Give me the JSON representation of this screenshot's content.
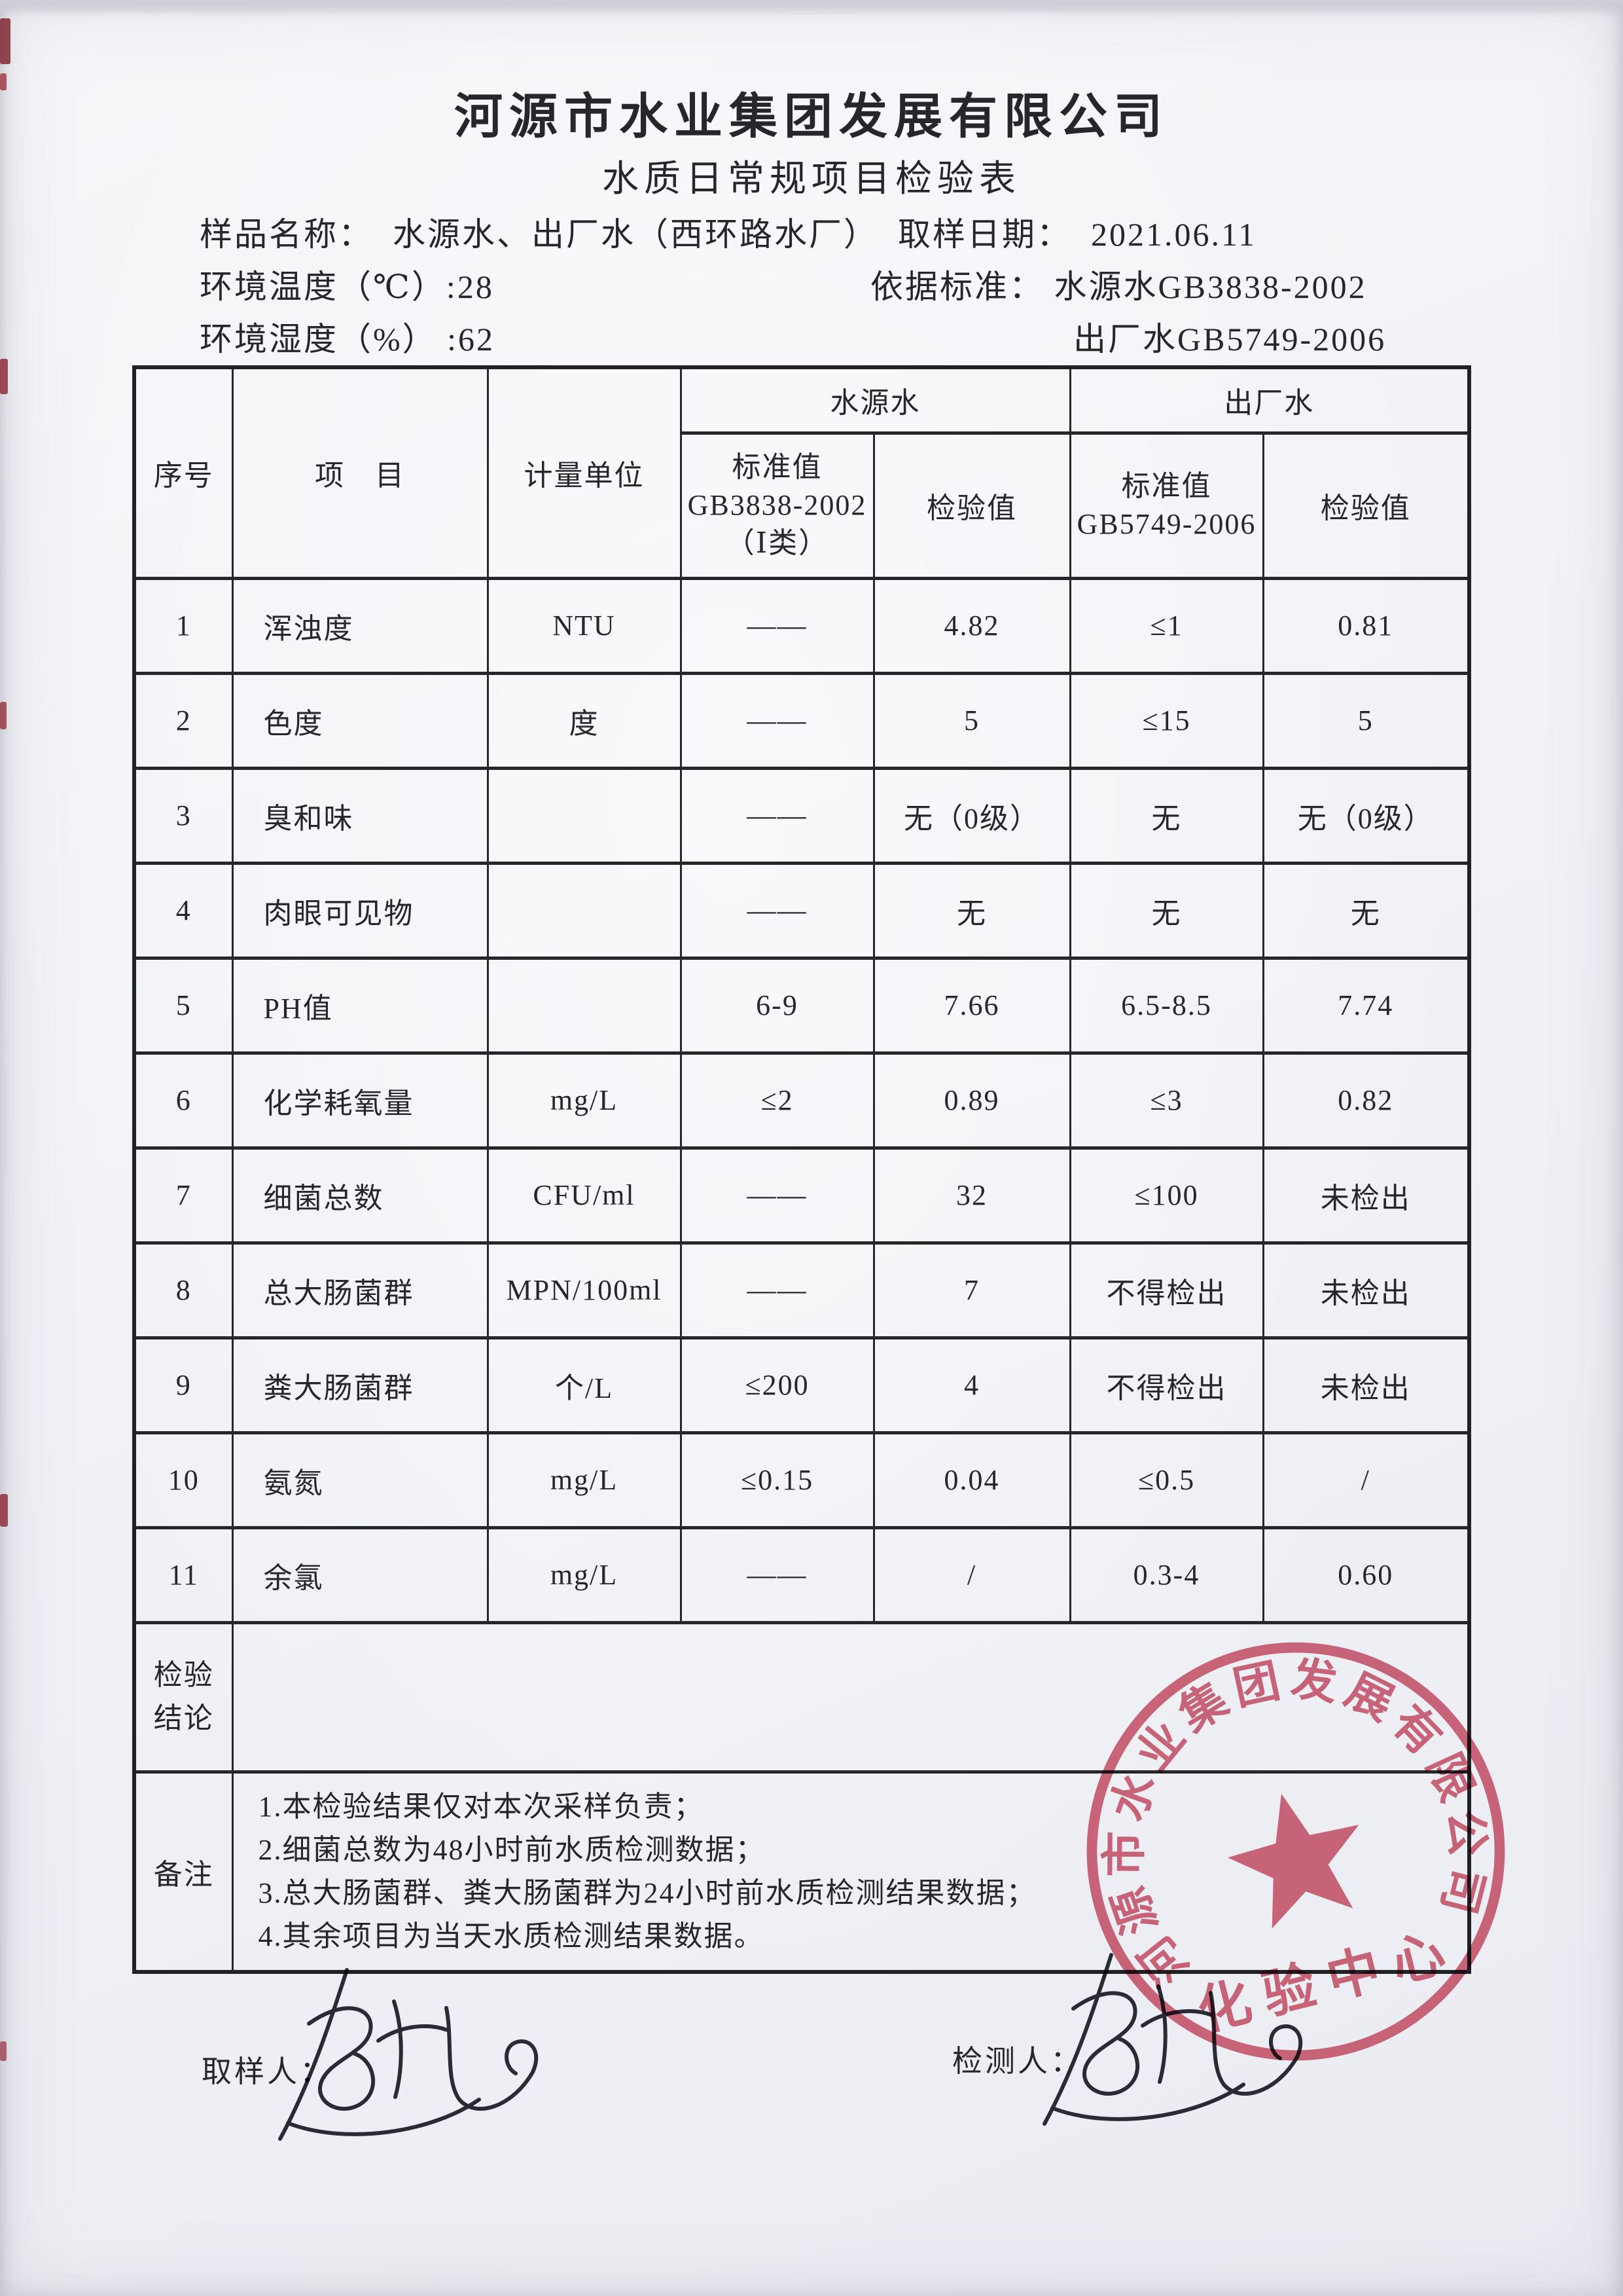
{
  "header": {
    "company": "河源市水业集团发展有限公司",
    "doc_title": "水质日常规项目检验表",
    "sample_label": "样品名称：",
    "sample_value": "水源水、出厂水（西环路水厂）",
    "date_label": "取样日期：",
    "date_value": "2021.06.11",
    "env_temp": "环境温度（℃）:28",
    "basis": "依据标准： 水源水GB3838-2002",
    "env_humidity": "环境湿度（%）  :62",
    "basis_factory": "出厂水GB5749-2006"
  },
  "table": {
    "headers": {
      "seq": "序号",
      "item": "项　目",
      "unit": "计量单位",
      "source_group": "水源水",
      "factory_group": "出厂水",
      "source_std": [
        "标准值",
        "GB3838-2002",
        "（Ⅰ类）"
      ],
      "source_check": "检验值",
      "factory_std": [
        "标准值",
        "GB5749-2006"
      ],
      "factory_check": "检验值"
    },
    "rows": [
      {
        "seq": "1",
        "item": "浑浊度",
        "unit": "NTU",
        "src_std": "——",
        "src_val": "4.82",
        "fac_std": "≤1",
        "fac_val": "0.81"
      },
      {
        "seq": "2",
        "item": "色度",
        "unit": "度",
        "src_std": "——",
        "src_val": "5",
        "fac_std": "≤15",
        "fac_val": "5"
      },
      {
        "seq": "3",
        "item": "臭和味",
        "unit": "",
        "src_std": "——",
        "src_val": "无（0级）",
        "fac_std": "无",
        "fac_val": "无（0级）"
      },
      {
        "seq": "4",
        "item": "肉眼可见物",
        "unit": "",
        "src_std": "——",
        "src_val": "无",
        "fac_std": "无",
        "fac_val": "无"
      },
      {
        "seq": "5",
        "item": "PH值",
        "unit": "",
        "src_std": "6-9",
        "src_val": "7.66",
        "fac_std": "6.5-8.5",
        "fac_val": "7.74"
      },
      {
        "seq": "6",
        "item": "化学耗氧量",
        "unit": "mg/L",
        "src_std": "≤2",
        "src_val": "0.89",
        "fac_std": "≤3",
        "fac_val": "0.82"
      },
      {
        "seq": "7",
        "item": "细菌总数",
        "unit": "CFU/ml",
        "src_std": "——",
        "src_val": "32",
        "fac_std": "≤100",
        "fac_val": "未检出"
      },
      {
        "seq": "8",
        "item": "总大肠菌群",
        "unit": "MPN/100ml",
        "src_std": "——",
        "src_val": "7",
        "fac_std": "不得检出",
        "fac_val": "未检出"
      },
      {
        "seq": "9",
        "item": "粪大肠菌群",
        "unit": "个/L",
        "src_std": "≤200",
        "src_val": "4",
        "fac_std": "不得检出",
        "fac_val": "未检出"
      },
      {
        "seq": "10",
        "item": "氨氮",
        "unit": "mg/L",
        "src_std": "≤0.15",
        "src_val": "0.04",
        "fac_std": "≤0.5",
        "fac_val": "/"
      },
      {
        "seq": "11",
        "item": "余氯",
        "unit": "mg/L",
        "src_std": "——",
        "src_val": "/",
        "fac_std": "0.3-4",
        "fac_val": "0.60"
      }
    ],
    "conclusion": {
      "label": [
        "检验",
        "结论"
      ],
      "value": ""
    },
    "remarks": {
      "label": "备注",
      "lines": [
        "1.本检验结果仅对本次采样负责；",
        "2.细菌总数为48小时前水质检测数据；",
        "3.总大肠菌群、粪大肠菌群为24小时前水质检测结果数据；",
        "4.其余项目为当天水质检测结果数据。"
      ]
    }
  },
  "footer": {
    "sampler_label": "取样人：",
    "tester_label": "检测人："
  },
  "stamp": {
    "ring_text": "河源市水业集团发展有限公司",
    "center_text": "化验中心",
    "color": "#cf5066"
  }
}
